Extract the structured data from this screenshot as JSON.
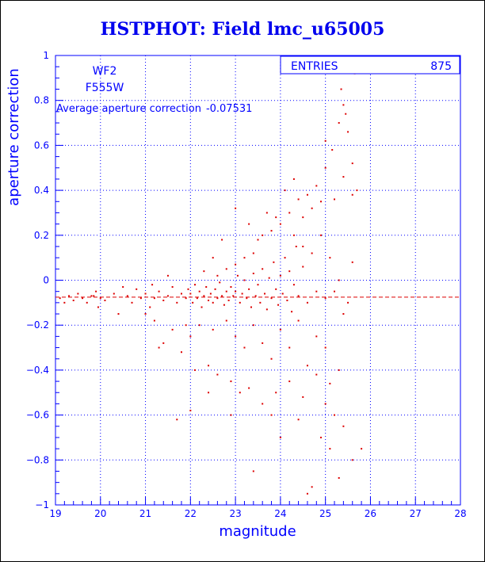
{
  "colors": {
    "axis": "#0000ff",
    "grid": "#0000ff",
    "points": "#dd0000",
    "mean_line": "#dd0000",
    "title": "#0000ee"
  },
  "chart_data": {
    "type": "scatter",
    "title": "HSTPHOT: Field lmc_u65005",
    "xlabel": "magnitude",
    "ylabel": "aperture correction",
    "xlim": [
      19,
      28
    ],
    "ylim": [
      -1,
      1
    ],
    "xticks": [
      "19",
      "20",
      "21",
      "22",
      "23",
      "24",
      "25",
      "26",
      "27",
      "28"
    ],
    "yticks": [
      "-1",
      "-0.8",
      "-0.6",
      "-0.4",
      "-0.2",
      "0",
      "0.2",
      "0.4",
      "0.6",
      "0.8",
      "1"
    ],
    "grid": true,
    "chip_label": "WF2",
    "filter_label": "F555W",
    "average_label": "Average aperture correction",
    "average_value": -0.07531,
    "average_text": "-0.07531",
    "stats_box": {
      "label": "ENTRIES",
      "value": "875",
      "placement": "top-right"
    },
    "series": [
      {
        "points": [
          [
            19.1,
            -0.08
          ],
          [
            19.2,
            -0.1
          ],
          [
            19.3,
            -0.07
          ],
          [
            19.4,
            -0.09
          ],
          [
            19.5,
            -0.06
          ],
          [
            19.6,
            -0.08
          ],
          [
            19.7,
            -0.1
          ],
          [
            19.8,
            -0.07
          ],
          [
            19.85,
            -0.07
          ],
          [
            19.9,
            -0.05
          ],
          [
            19.95,
            -0.12
          ],
          [
            20.0,
            -0.08
          ],
          [
            20.1,
            -0.09
          ],
          [
            20.3,
            -0.06
          ],
          [
            20.4,
            -0.15
          ],
          [
            20.5,
            -0.03
          ],
          [
            20.6,
            -0.07
          ],
          [
            20.7,
            -0.1
          ],
          [
            20.8,
            -0.04
          ],
          [
            20.9,
            -0.08
          ],
          [
            21.0,
            -0.06
          ],
          [
            21.1,
            -0.12
          ],
          [
            21.15,
            -0.02
          ],
          [
            21.2,
            -0.08
          ],
          [
            21.3,
            -0.05
          ],
          [
            21.4,
            -0.09
          ],
          [
            21.5,
            -0.07
          ],
          [
            21.6,
            -0.03
          ],
          [
            21.7,
            -0.1
          ],
          [
            21.8,
            -0.06
          ],
          [
            21.9,
            -0.08
          ],
          [
            21.95,
            -0.04
          ],
          [
            22.0,
            -0.06
          ],
          [
            22.05,
            -0.1
          ],
          [
            22.1,
            -0.02
          ],
          [
            22.15,
            -0.08
          ],
          [
            22.2,
            -0.05
          ],
          [
            22.25,
            -0.12
          ],
          [
            22.3,
            -0.07
          ],
          [
            22.35,
            -0.03
          ],
          [
            22.4,
            -0.09
          ],
          [
            22.45,
            -0.06
          ],
          [
            22.5,
            -0.1
          ],
          [
            22.55,
            -0.04
          ],
          [
            22.6,
            -0.08
          ],
          [
            22.65,
            -0.01
          ],
          [
            22.7,
            -0.07
          ],
          [
            22.75,
            -0.11
          ],
          [
            22.8,
            -0.05
          ],
          [
            22.85,
            -0.09
          ],
          [
            22.9,
            -0.03
          ],
          [
            22.95,
            -0.07
          ],
          [
            23.0,
            -0.05
          ],
          [
            23.05,
            0.02
          ],
          [
            23.1,
            -0.1
          ],
          [
            23.15,
            -0.06
          ],
          [
            23.2,
            0.0
          ],
          [
            23.25,
            -0.08
          ],
          [
            23.3,
            -0.04
          ],
          [
            23.35,
            -0.12
          ],
          [
            23.4,
            0.03
          ],
          [
            23.45,
            -0.07
          ],
          [
            23.5,
            -0.02
          ],
          [
            23.55,
            -0.1
          ],
          [
            23.6,
            0.05
          ],
          [
            23.65,
            -0.06
          ],
          [
            23.7,
            -0.13
          ],
          [
            23.75,
            0.01
          ],
          [
            23.8,
            -0.08
          ],
          [
            23.85,
            0.08
          ],
          [
            23.9,
            -0.04
          ],
          [
            23.95,
            -0.11
          ],
          [
            24.0,
            0.02
          ],
          [
            24.05,
            -0.06
          ],
          [
            24.1,
            0.1
          ],
          [
            24.15,
            -0.09
          ],
          [
            24.2,
            0.04
          ],
          [
            24.25,
            -0.14
          ],
          [
            24.3,
            -0.02
          ],
          [
            24.35,
            0.15
          ],
          [
            24.4,
            -0.07
          ],
          [
            24.5,
            0.06
          ],
          [
            24.6,
            -0.1
          ],
          [
            24.7,
            0.12
          ],
          [
            24.8,
            -0.05
          ],
          [
            24.9,
            0.2
          ],
          [
            25.0,
            -0.08
          ],
          [
            22.3,
            0.04
          ],
          [
            22.6,
            0.02
          ],
          [
            22.8,
            0.05
          ],
          [
            23.0,
            0.07
          ],
          [
            23.2,
            0.1
          ],
          [
            23.4,
            0.12
          ],
          [
            23.5,
            0.18
          ],
          [
            23.6,
            0.2
          ],
          [
            23.8,
            0.22
          ],
          [
            24.0,
            0.25
          ],
          [
            24.2,
            0.3
          ],
          [
            24.3,
            0.2
          ],
          [
            24.5,
            0.28
          ],
          [
            24.7,
            0.32
          ],
          [
            24.9,
            0.35
          ],
          [
            22.2,
            -0.2
          ],
          [
            22.5,
            -0.22
          ],
          [
            22.8,
            -0.18
          ],
          [
            23.0,
            -0.25
          ],
          [
            23.2,
            -0.3
          ],
          [
            23.4,
            -0.2
          ],
          [
            23.6,
            -0.28
          ],
          [
            23.8,
            -0.35
          ],
          [
            24.0,
            -0.22
          ],
          [
            24.2,
            -0.3
          ],
          [
            24.4,
            -0.18
          ],
          [
            24.6,
            -0.38
          ],
          [
            24.8,
            -0.25
          ],
          [
            25.0,
            -0.3
          ],
          [
            21.4,
            -0.28
          ],
          [
            21.8,
            -0.32
          ],
          [
            22.1,
            -0.4
          ],
          [
            22.4,
            -0.38
          ],
          [
            22.6,
            -0.42
          ],
          [
            22.9,
            -0.45
          ],
          [
            23.1,
            -0.5
          ],
          [
            23.3,
            -0.48
          ],
          [
            23.6,
            -0.55
          ],
          [
            23.9,
            -0.5
          ],
          [
            24.2,
            -0.45
          ],
          [
            24.5,
            -0.52
          ],
          [
            24.8,
            -0.42
          ],
          [
            25.1,
            -0.46
          ],
          [
            25.3,
            -0.4
          ],
          [
            21.0,
            -0.15
          ],
          [
            21.2,
            -0.18
          ],
          [
            21.6,
            -0.22
          ],
          [
            21.9,
            -0.2
          ],
          [
            22.0,
            -0.25
          ],
          [
            24.1,
            0.4
          ],
          [
            24.3,
            0.45
          ],
          [
            24.6,
            0.38
          ],
          [
            24.8,
            0.42
          ],
          [
            25.0,
            0.5
          ],
          [
            25.2,
            0.36
          ],
          [
            25.4,
            0.46
          ],
          [
            25.6,
            0.38
          ],
          [
            24.4,
            0.36
          ],
          [
            23.9,
            0.28
          ],
          [
            25.0,
            0.62
          ],
          [
            25.15,
            0.58
          ],
          [
            25.3,
            0.7
          ],
          [
            25.45,
            0.74
          ],
          [
            25.5,
            0.66
          ],
          [
            25.6,
            0.52
          ],
          [
            25.7,
            0.4
          ],
          [
            25.35,
            0.85
          ],
          [
            25.4,
            0.78
          ],
          [
            25.55,
            0.98
          ],
          [
            25.65,
            0.92
          ],
          [
            25.1,
            0.1
          ],
          [
            25.2,
            -0.05
          ],
          [
            25.3,
            0.0
          ],
          [
            25.4,
            -0.15
          ],
          [
            25.5,
            -0.1
          ],
          [
            25.6,
            0.08
          ],
          [
            25.0,
            -0.55
          ],
          [
            25.2,
            -0.6
          ],
          [
            25.4,
            -0.65
          ],
          [
            25.1,
            -0.75
          ],
          [
            25.3,
            -0.88
          ],
          [
            25.6,
            -0.8
          ],
          [
            25.8,
            -0.75
          ],
          [
            24.7,
            -0.92
          ],
          [
            24.9,
            -0.7
          ],
          [
            23.4,
            -0.85
          ],
          [
            22.9,
            -0.6
          ],
          [
            24.6,
            -0.95
          ],
          [
            22.0,
            -0.58
          ],
          [
            21.7,
            -0.62
          ],
          [
            23.0,
            0.32
          ],
          [
            23.7,
            0.3
          ],
          [
            22.7,
            0.18
          ],
          [
            23.3,
            0.25
          ],
          [
            24.5,
            0.15
          ],
          [
            22.5,
            0.1
          ],
          [
            21.5,
            0.02
          ],
          [
            24.4,
            -0.62
          ],
          [
            23.8,
            -0.6
          ],
          [
            24.0,
            -0.7
          ],
          [
            22.4,
            -0.5
          ],
          [
            21.3,
            -0.3
          ]
        ]
      }
    ]
  }
}
